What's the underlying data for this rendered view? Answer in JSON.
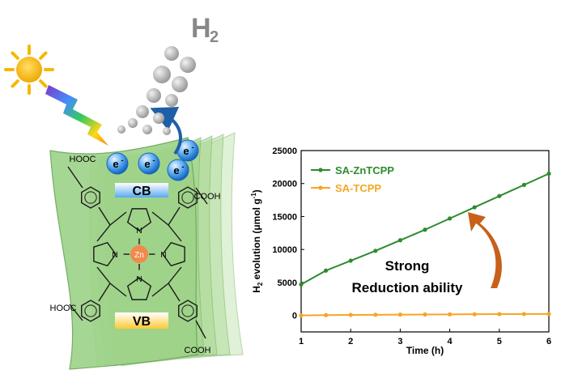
{
  "illustration": {
    "product_label": "H",
    "product_subscript": "2",
    "electron_label": "e",
    "electron_charge": "-",
    "cb_label": "CB",
    "vb_label": "VB",
    "metal_label": "Zn",
    "substituents": [
      "HOOC",
      "COOH",
      "HOOC",
      "COOH"
    ],
    "atom_label": "N",
    "sun_color": "#f5b800",
    "sheet_color": "#9fd38a",
    "electron_color": "#1e7fd9",
    "metal_color": "#f08a4b"
  },
  "chart_data": {
    "type": "line",
    "x": [
      1,
      1.5,
      2,
      2.5,
      3,
      3.5,
      4,
      4.5,
      5,
      5.5,
      6
    ],
    "series": [
      {
        "name": "SA-ZnTCPP",
        "color": "#2e8b2e",
        "values": [
          4700,
          6800,
          8300,
          9800,
          11400,
          13000,
          14700,
          16400,
          18100,
          19800,
          21500
        ]
      },
      {
        "name": "SA-TCPP",
        "color": "#f5a623",
        "values": [
          0,
          50,
          80,
          100,
          120,
          140,
          160,
          180,
          200,
          210,
          220
        ]
      }
    ],
    "xlabel": "Time (h)",
    "ylabel_prefix": "H",
    "ylabel_sub": "2",
    "ylabel_suffix": " evolution (μmol g",
    "ylabel_sup": "-1",
    "ylabel_end": ")",
    "xlim": [
      1,
      6
    ],
    "ylim": [
      -2500,
      25000
    ],
    "xticks": [
      "1",
      "2",
      "3",
      "4",
      "5",
      "6"
    ],
    "yticks": [
      "0",
      "5000",
      "10000",
      "15000",
      "20000",
      "25000"
    ],
    "xtick_values": [
      1,
      2,
      3,
      4,
      5,
      6
    ],
    "ytick_values": [
      0,
      5000,
      10000,
      15000,
      20000,
      25000
    ],
    "legend_position": "top-left",
    "annotation_line1": "Strong",
    "annotation_line2": "Reduction ability",
    "arrow_color": "#c8601a",
    "grid": false
  }
}
